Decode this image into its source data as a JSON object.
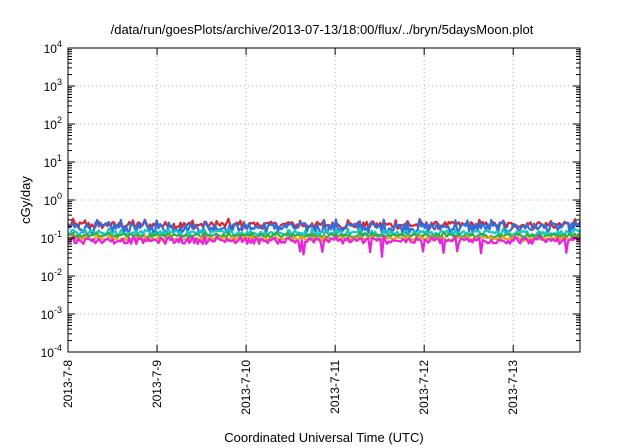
{
  "chart_data": {
    "type": "line",
    "title": "/data/run/goesPlots/archive/2013-07-13/18:00/flux/../bryn/5daysMoon.plot",
    "xlabel": "Coordinated Universal Time (UTC)",
    "ylabel": "cGy/day",
    "yscale": "log",
    "ylim": [
      0.0001,
      10000
    ],
    "y_ticks": [
      {
        "base": "10",
        "exp": "-4",
        "value": 0.0001
      },
      {
        "base": "10",
        "exp": "-3",
        "value": 0.001
      },
      {
        "base": "10",
        "exp": "-2",
        "value": 0.01
      },
      {
        "base": "10",
        "exp": "-1",
        "value": 0.1
      },
      {
        "base": "10",
        "exp": "0",
        "value": 1
      },
      {
        "base": "10",
        "exp": "1",
        "value": 10
      },
      {
        "base": "10",
        "exp": "2",
        "value": 100
      },
      {
        "base": "10",
        "exp": "3",
        "value": 1000
      },
      {
        "base": "10",
        "exp": "4",
        "value": 10000
      }
    ],
    "x_ticks": [
      "2013-7-8",
      "2013-7-9",
      "2013-7-10",
      "2013-7-11",
      "2013-7-12",
      "2013-7-13"
    ],
    "xlim": [
      "2013-07-08 00:00",
      "2013-07-13 18:00"
    ],
    "grid": true,
    "legend": "none",
    "series": [
      {
        "color": "#e0242e",
        "level": 0.22,
        "spread": 0.22,
        "dips": false
      },
      {
        "color": "#2b6fe0",
        "level": 0.19,
        "spread": 0.3,
        "dips": false
      },
      {
        "color": "#18c7c7",
        "level": 0.135,
        "spread": 0.18,
        "dips": false
      },
      {
        "color": "#2fae3a",
        "level": 0.115,
        "spread": 0.12,
        "dips": false
      },
      {
        "color": "#e6a11e",
        "level": 0.095,
        "spread": 0.12,
        "dips": false
      },
      {
        "color": "#ee1fe0",
        "level": 0.085,
        "spread": 0.18,
        "dips": true
      }
    ]
  }
}
